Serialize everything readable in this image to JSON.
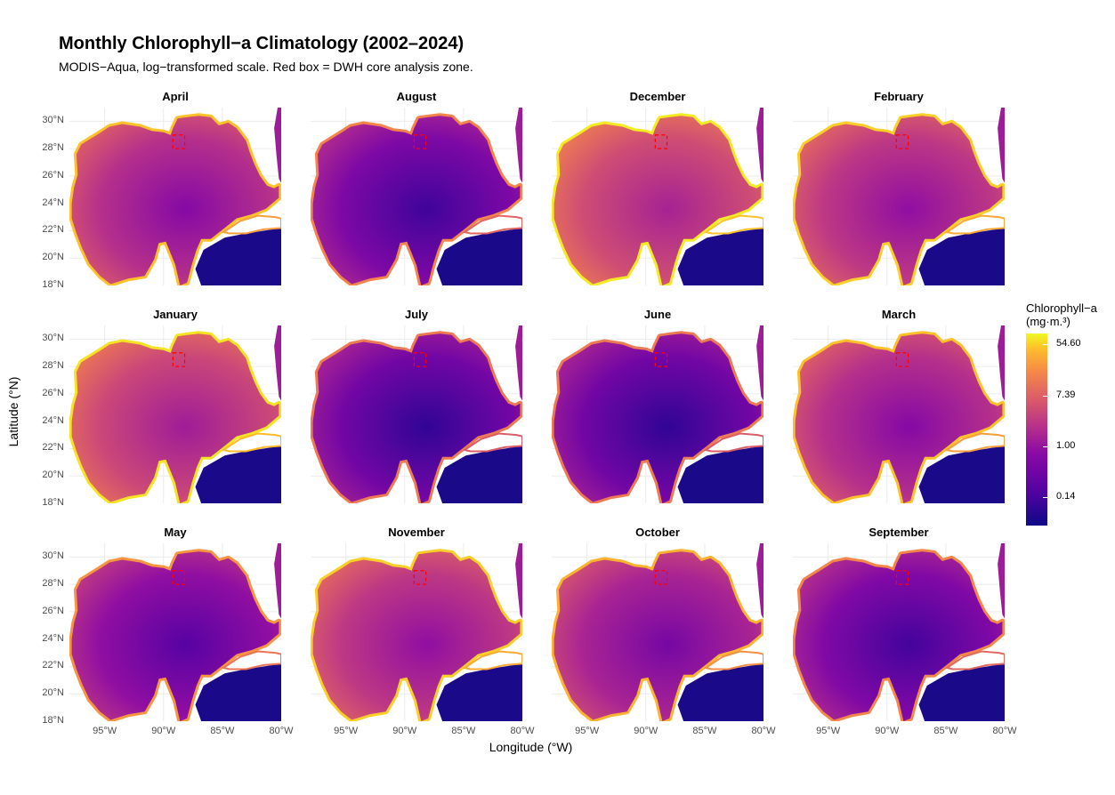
{
  "figure": {
    "title": "Monthly Chlorophyll−a Climatology (2002–2024)",
    "subtitle": "MODIS−Aqua, log−transformed scale. Red box = DWH core analysis zone.",
    "x_axis_title": "Longitude (°W)",
    "y_axis_title": "Latitude (°N)",
    "lat_ticks": [
      "30°N",
      "28°N",
      "26°N",
      "24°N",
      "22°N",
      "20°N",
      "18°N"
    ],
    "lon_ticks": [
      "95°W",
      "90°W",
      "85°W",
      "80°W"
    ],
    "legend": {
      "title_line1": "Chlorophyll−a",
      "title_line2": "(mg·m.³)",
      "labels": [
        "54.60",
        "7.39",
        "1.00",
        "0.14"
      ],
      "colors": [
        "#0d0887",
        "#5402a3",
        "#8b0aa5",
        "#b83289",
        "#db5c68",
        "#f48849",
        "#febd2a",
        "#f0f921"
      ]
    },
    "panels": [
      {
        "month": "April",
        "level": 0.42
      },
      {
        "month": "August",
        "level": 0.25
      },
      {
        "month": "December",
        "level": 0.52
      },
      {
        "month": "February",
        "level": 0.45
      },
      {
        "month": "January",
        "level": 0.5
      },
      {
        "month": "July",
        "level": 0.22
      },
      {
        "month": "June",
        "level": 0.22
      },
      {
        "month": "March",
        "level": 0.42
      },
      {
        "month": "May",
        "level": 0.3
      },
      {
        "month": "November",
        "level": 0.45
      },
      {
        "month": "October",
        "level": 0.38
      },
      {
        "month": "September",
        "level": 0.26
      }
    ],
    "colors": {
      "land": "#ffffff",
      "grid": "#ebebeb",
      "dwh_box": "#ff0000",
      "deep_water": "#1a0a8a"
    }
  }
}
